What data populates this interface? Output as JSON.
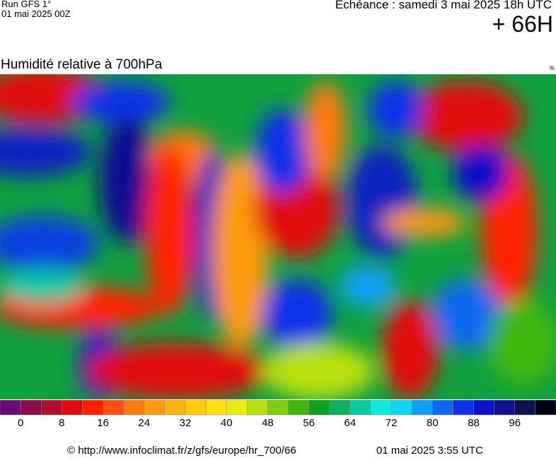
{
  "header": {
    "run": "Run GFS 1°",
    "run_date": "01 mai 2025 00Z",
    "valid": "Echéance : samedi 3 mai 2025 18h UTC",
    "lead": "+ 66H"
  },
  "map": {
    "title": "Humidité relative à 700hPa",
    "unit": "%"
  },
  "colorbar": {
    "colors": [
      "#6a0a78",
      "#8c0a50",
      "#b01030",
      "#e00a10",
      "#ff2000",
      "#ff5010",
      "#ff7a10",
      "#ff9a10",
      "#ffb410",
      "#ffcc10",
      "#ffe010",
      "#e8ec10",
      "#b8e010",
      "#80cc10",
      "#40b810",
      "#10a020",
      "#10b060",
      "#10c8a0",
      "#10e8d8",
      "#10d4f8",
      "#10a0f8",
      "#1068f0",
      "#1030e8",
      "#1010c8",
      "#101090",
      "#101050",
      "#000018"
    ],
    "labels": [
      0,
      8,
      16,
      24,
      32,
      40,
      48,
      56,
      64,
      72,
      80,
      88,
      96
    ]
  },
  "footer": {
    "source": "© http://www.infoclimat.fr/z/gfs/europe/hr_700/66",
    "generated": "01 mai 2025  3:55 UTC"
  }
}
